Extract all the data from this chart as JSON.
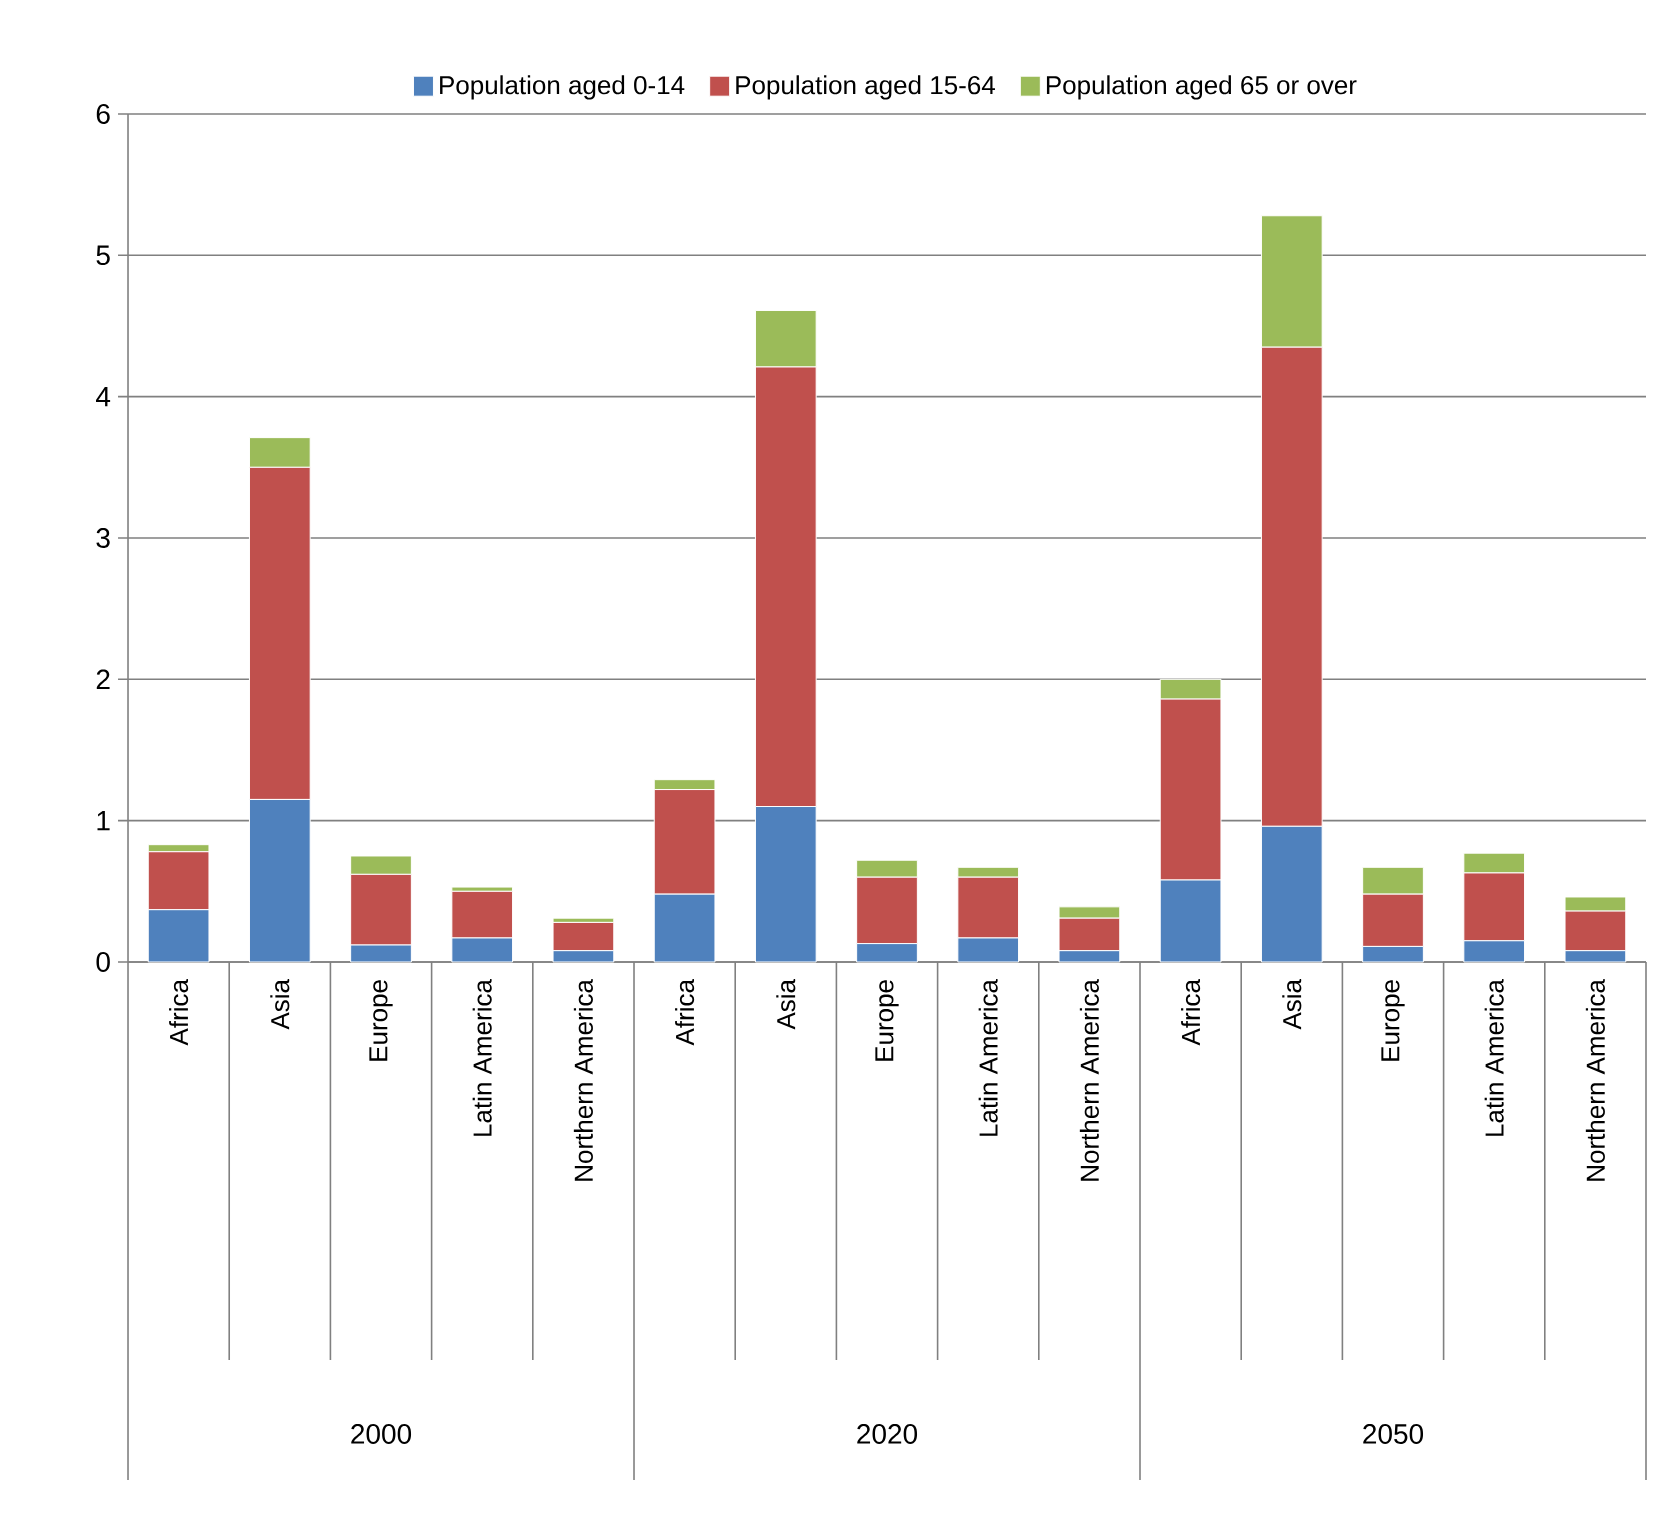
{
  "chart_data": {
    "type": "bar",
    "stacked": true,
    "categories": [
      "Africa",
      "Asia",
      "Europe",
      "Latin America",
      "Northern America",
      "Africa",
      "Asia",
      "Europe",
      "Latin America",
      "Northern America",
      "Africa",
      "Asia",
      "Europe",
      "Latin America",
      "Northern America"
    ],
    "series": [
      {
        "name": "Population aged 0-14",
        "color": "#4f81bd",
        "values": [
          0.37,
          1.15,
          0.12,
          0.17,
          0.08,
          0.48,
          1.1,
          0.13,
          0.17,
          0.08,
          0.58,
          0.96,
          0.11,
          0.15,
          0.08
        ]
      },
      {
        "name": "Population aged 15-64",
        "color": "#c0504d",
        "values": [
          0.41,
          2.35,
          0.5,
          0.33,
          0.2,
          0.74,
          3.11,
          0.47,
          0.43,
          0.23,
          1.28,
          3.39,
          0.37,
          0.48,
          0.28
        ]
      },
      {
        "name": "Population aged 65 or over",
        "color": "#9bbb59",
        "values": [
          0.05,
          0.21,
          0.13,
          0.03,
          0.03,
          0.07,
          0.4,
          0.12,
          0.07,
          0.08,
          0.14,
          0.93,
          0.19,
          0.14,
          0.1
        ]
      }
    ],
    "annotations": [
      "2000",
      "2020",
      "2050"
    ],
    "ylim": [
      0,
      6
    ],
    "yticks": [
      0,
      1,
      2,
      3,
      4,
      5,
      6
    ],
    "grid": "y",
    "legend": "top"
  }
}
